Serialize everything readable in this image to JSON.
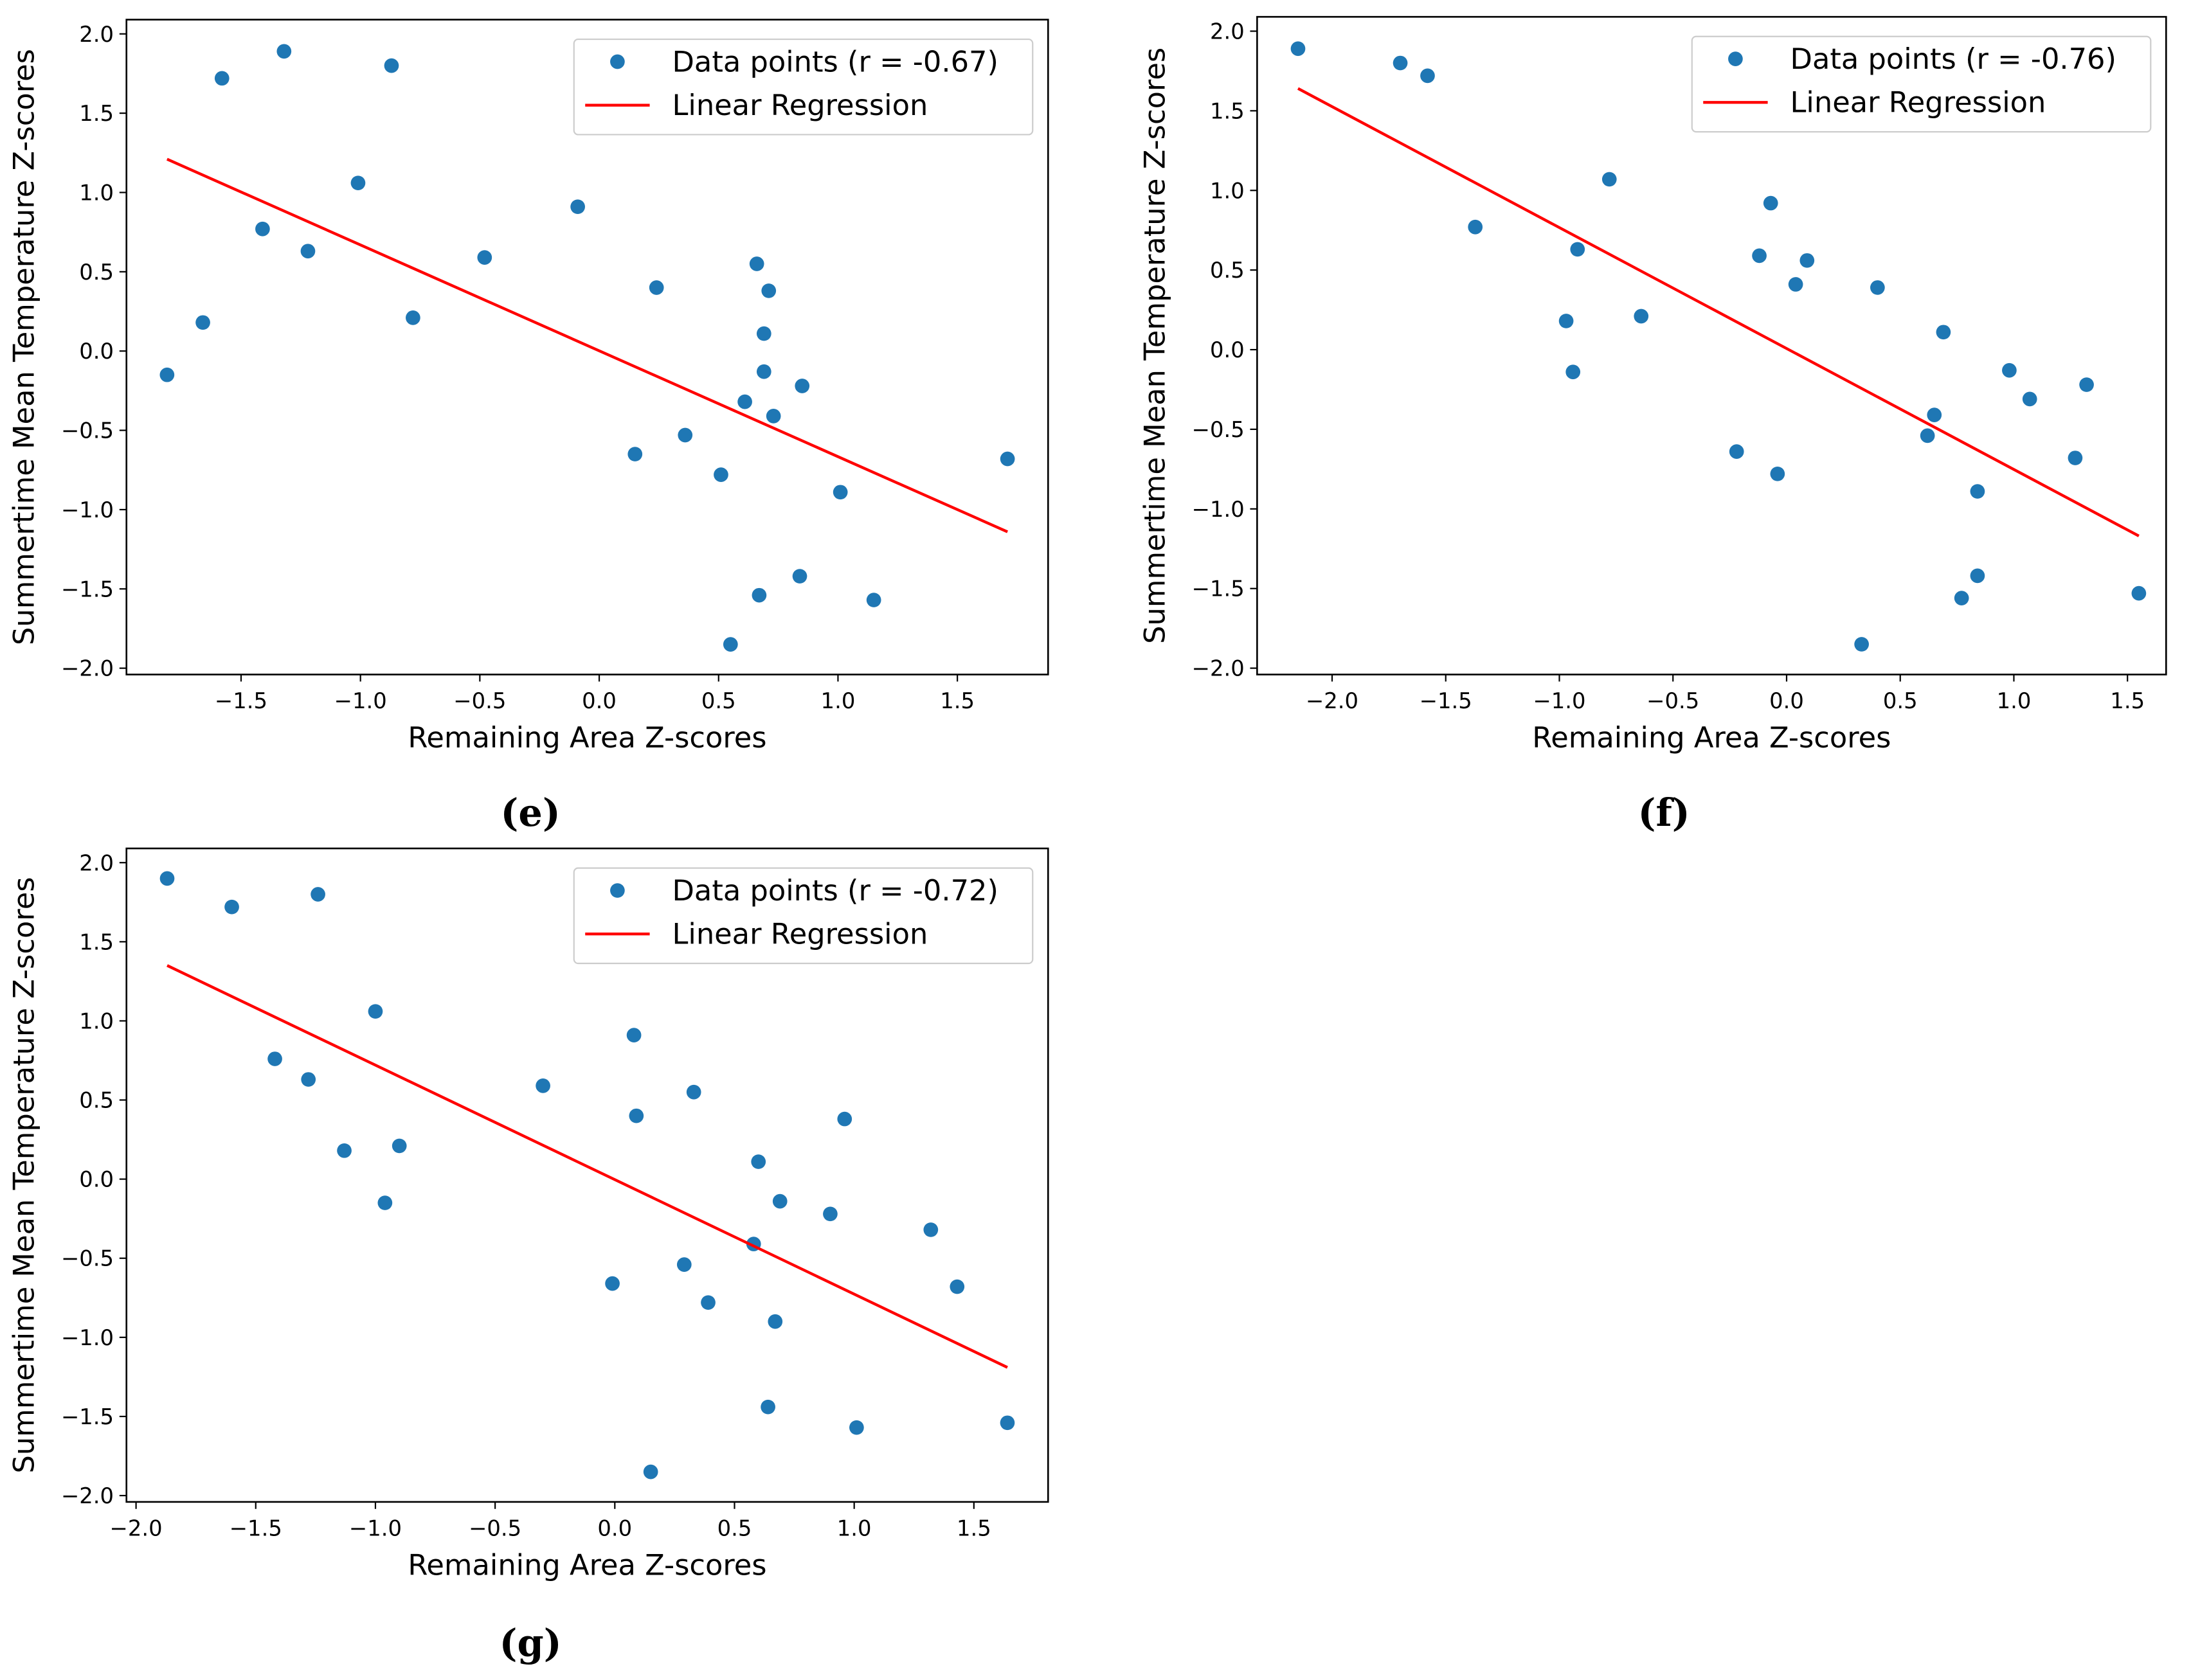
{
  "colors": {
    "points": "#1f77b4",
    "line": "#ff0000",
    "axes": "#000000",
    "legend_border": "#cccccc"
  },
  "chart_data": [
    {
      "type": "scatter",
      "caption": "(e)",
      "xlabel": "Remaining Area Z-scores",
      "ylabel": "Summertime Mean Temperature Z-scores",
      "xlim": [
        -1.98,
        1.88
      ],
      "ylim": [
        -2.04,
        2.09
      ],
      "xticks": [
        -1.5,
        -1.0,
        -0.5,
        0.0,
        0.5,
        1.0,
        1.5
      ],
      "xtick_labels": [
        "−1.5",
        "−1.0",
        "−0.5",
        "0.0",
        "0.5",
        "1.0",
        "1.5"
      ],
      "yticks": [
        -2.0,
        -1.5,
        -1.0,
        -0.5,
        0.0,
        0.5,
        1.0,
        1.5,
        2.0
      ],
      "ytick_labels": [
        "−2.0",
        "−1.5",
        "−1.0",
        "−0.5",
        "0.0",
        "0.5",
        "1.0",
        "1.5",
        "2.0"
      ],
      "legend": {
        "placement": "top-right",
        "points_label": "Data points (r = -0.67)",
        "line_label": "Linear Regression"
      },
      "r": -0.67,
      "points": [
        [
          -1.81,
          -0.15
        ],
        [
          -1.66,
          0.18
        ],
        [
          -1.58,
          1.72
        ],
        [
          -1.41,
          0.77
        ],
        [
          -1.32,
          1.89
        ],
        [
          -1.22,
          0.63
        ],
        [
          -1.01,
          1.06
        ],
        [
          -0.87,
          1.8
        ],
        [
          -0.78,
          0.21
        ],
        [
          -0.48,
          0.59
        ],
        [
          -0.09,
          0.91
        ],
        [
          0.15,
          -0.65
        ],
        [
          0.24,
          0.4
        ],
        [
          0.36,
          -0.53
        ],
        [
          0.51,
          -0.78
        ],
        [
          0.55,
          -1.85
        ],
        [
          0.61,
          -0.32
        ],
        [
          0.66,
          0.55
        ],
        [
          0.67,
          -1.54
        ],
        [
          0.69,
          0.11
        ],
        [
          0.69,
          -0.13
        ],
        [
          0.71,
          0.38
        ],
        [
          0.73,
          -0.41
        ],
        [
          0.84,
          -1.42
        ],
        [
          0.85,
          -0.22
        ],
        [
          1.01,
          -0.89
        ],
        [
          1.15,
          -1.57
        ],
        [
          1.71,
          -0.68
        ]
      ],
      "regression": [
        [
          -1.81,
          1.21
        ],
        [
          1.71,
          -1.14
        ]
      ]
    },
    {
      "type": "scatter",
      "caption": "(f)",
      "xlabel": "Remaining Area Z-scores",
      "ylabel": "Summertime Mean Temperature Z-scores",
      "xlim": [
        -2.33,
        1.67
      ],
      "ylim": [
        -2.04,
        2.09
      ],
      "xticks": [
        -2.0,
        -1.5,
        -1.0,
        -0.5,
        0.0,
        0.5,
        1.0,
        1.5
      ],
      "xtick_labels": [
        "−2.0",
        "−1.5",
        "−1.0",
        "−0.5",
        "0.0",
        "0.5",
        "1.0",
        "1.5"
      ],
      "yticks": [
        -2.0,
        -1.5,
        -1.0,
        -0.5,
        0.0,
        0.5,
        1.0,
        1.5,
        2.0
      ],
      "ytick_labels": [
        "−2.0",
        "−1.5",
        "−1.0",
        "−0.5",
        "0.0",
        "0.5",
        "1.0",
        "1.5",
        "2.0"
      ],
      "legend": {
        "placement": "top-right",
        "points_label": "Data points (r = -0.76)",
        "line_label": "Linear Regression"
      },
      "r": -0.76,
      "points": [
        [
          -2.15,
          1.89
        ],
        [
          -1.7,
          1.8
        ],
        [
          -1.58,
          1.72
        ],
        [
          -1.37,
          0.77
        ],
        [
          -0.97,
          0.18
        ],
        [
          -0.94,
          -0.14
        ],
        [
          -0.92,
          0.63
        ],
        [
          -0.78,
          1.07
        ],
        [
          -0.64,
          0.21
        ],
        [
          -0.22,
          -0.64
        ],
        [
          -0.12,
          0.59
        ],
        [
          -0.07,
          0.92
        ],
        [
          -0.04,
          -0.78
        ],
        [
          0.04,
          0.41
        ],
        [
          0.09,
          0.56
        ],
        [
          0.33,
          -1.85
        ],
        [
          0.4,
          0.39
        ],
        [
          0.62,
          -0.54
        ],
        [
          0.65,
          -0.41
        ],
        [
          0.69,
          0.11
        ],
        [
          0.77,
          -1.56
        ],
        [
          0.84,
          -0.89
        ],
        [
          0.84,
          -1.42
        ],
        [
          0.98,
          -0.13
        ],
        [
          1.07,
          -0.31
        ],
        [
          1.27,
          -0.68
        ],
        [
          1.32,
          -0.22
        ],
        [
          1.55,
          -1.53
        ]
      ],
      "regression": [
        [
          -2.15,
          1.64
        ],
        [
          1.55,
          -1.17
        ]
      ]
    },
    {
      "type": "scatter",
      "caption": "(g)",
      "xlabel": "Remaining Area Z-scores",
      "ylabel": "Summertime Mean Temperature Z-scores",
      "xlim": [
        -2.04,
        1.81
      ],
      "ylim": [
        -2.04,
        2.09
      ],
      "xticks": [
        -2.0,
        -1.5,
        -1.0,
        -0.5,
        0.0,
        0.5,
        1.0,
        1.5
      ],
      "xtick_labels": [
        "−2.0",
        "−1.5",
        "−1.0",
        "−0.5",
        "0.0",
        "0.5",
        "1.0",
        "1.5"
      ],
      "yticks": [
        -2.0,
        -1.5,
        -1.0,
        -0.5,
        0.0,
        0.5,
        1.0,
        1.5,
        2.0
      ],
      "ytick_labels": [
        "−2.0",
        "−1.5",
        "−1.0",
        "−0.5",
        "0.0",
        "0.5",
        "1.0",
        "1.5",
        "2.0"
      ],
      "legend": {
        "placement": "top-right",
        "points_label": "Data points (r = -0.72)",
        "line_label": "Linear Regression"
      },
      "r": -0.72,
      "points": [
        [
          -1.87,
          1.9
        ],
        [
          -1.6,
          1.72
        ],
        [
          -1.24,
          1.8
        ],
        [
          -1.42,
          0.76
        ],
        [
          -1.28,
          0.63
        ],
        [
          -1.13,
          0.18
        ],
        [
          -1.0,
          1.06
        ],
        [
          -0.96,
          -0.15
        ],
        [
          -0.9,
          0.21
        ],
        [
          -0.3,
          0.59
        ],
        [
          -0.01,
          -0.66
        ],
        [
          0.08,
          0.91
        ],
        [
          0.09,
          0.4
        ],
        [
          0.29,
          -0.54
        ],
        [
          0.33,
          0.55
        ],
        [
          0.39,
          -0.78
        ],
        [
          0.58,
          -0.41
        ],
        [
          0.6,
          0.11
        ],
        [
          0.64,
          -1.44
        ],
        [
          0.67,
          -0.9
        ],
        [
          0.69,
          -0.14
        ],
        [
          0.9,
          -0.22
        ],
        [
          0.96,
          0.38
        ],
        [
          1.01,
          -1.57
        ],
        [
          0.15,
          -1.85
        ],
        [
          1.32,
          -0.32
        ],
        [
          1.43,
          -0.68
        ],
        [
          1.64,
          -1.54
        ]
      ],
      "regression": [
        [
          -1.87,
          1.35
        ],
        [
          1.64,
          -1.19
        ]
      ]
    }
  ]
}
